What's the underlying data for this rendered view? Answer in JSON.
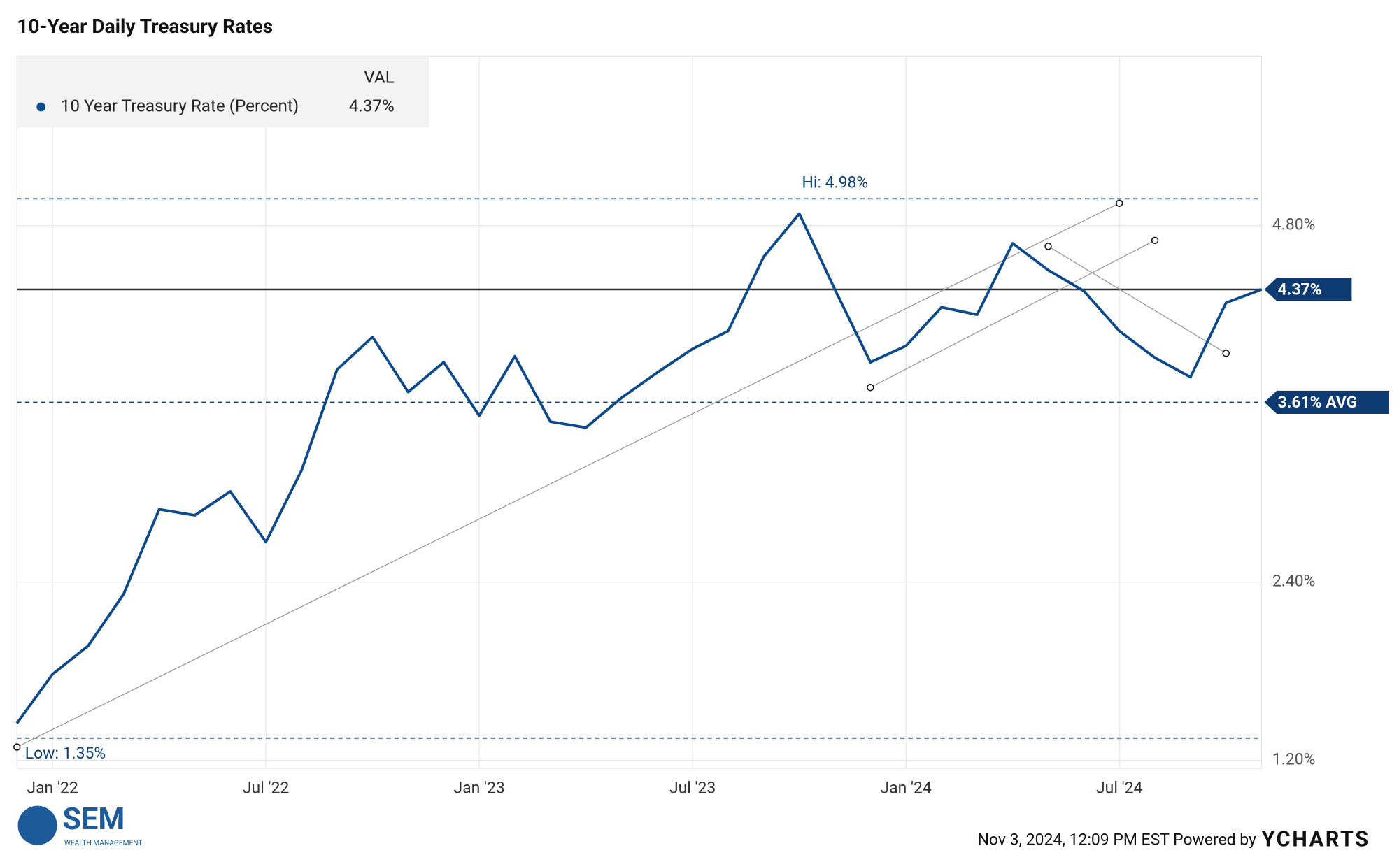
{
  "chart_data": {
    "type": "line",
    "title": "10-Year Daily Treasury Rates",
    "x": [
      "2021-12",
      "2022-01",
      "2022-02",
      "2022-03",
      "2022-04",
      "2022-05",
      "2022-06",
      "2022-07",
      "2022-08",
      "2022-09",
      "2022-10",
      "2022-11",
      "2022-12",
      "2023-01",
      "2023-02",
      "2023-03",
      "2023-04",
      "2023-05",
      "2023-06",
      "2023-07",
      "2023-08",
      "2023-09",
      "2023-10",
      "2023-11",
      "2023-12",
      "2024-01",
      "2024-02",
      "2024-03",
      "2024-04",
      "2024-05",
      "2024-06",
      "2024-07",
      "2024-08",
      "2024-09",
      "2024-10",
      "2024-11"
    ],
    "series": [
      {
        "name": "10 Year Treasury Rate (Percent)",
        "color": "#0d4a8c",
        "values": [
          1.45,
          1.78,
          1.97,
          2.32,
          2.89,
          2.85,
          3.01,
          2.67,
          3.15,
          3.83,
          4.05,
          3.68,
          3.88,
          3.52,
          3.92,
          3.48,
          3.44,
          3.64,
          3.81,
          3.97,
          4.09,
          4.59,
          4.88,
          4.37,
          3.88,
          3.99,
          4.25,
          4.2,
          4.68,
          4.5,
          4.36,
          4.09,
          3.91,
          3.78,
          4.28,
          4.37
        ]
      }
    ],
    "legend_header": "VAL",
    "legend_value": "4.37%",
    "xlim": [
      "2021-12",
      "2024-11"
    ],
    "xticks": [
      {
        "value": "2022-01",
        "label": "Jan '22"
      },
      {
        "value": "2022-07",
        "label": "Jul '22"
      },
      {
        "value": "2023-01",
        "label": "Jan '23"
      },
      {
        "value": "2023-07",
        "label": "Jul '23"
      },
      {
        "value": "2024-01",
        "label": "Jan '24"
      },
      {
        "value": "2024-07",
        "label": "Jul '24"
      }
    ],
    "ylim": [
      1.146,
      5.94
    ],
    "yticks": [
      {
        "value": 1.2,
        "label": "1.20%"
      },
      {
        "value": 2.4,
        "label": "2.40%"
      },
      {
        "value": 4.8,
        "label": "4.80%"
      }
    ],
    "grid": true,
    "reference_lines": [
      {
        "value": 4.98,
        "label": "Hi: 4.98%",
        "style": "dashed"
      },
      {
        "value": 1.35,
        "label": "Low: 1.35%",
        "style": "dashed"
      },
      {
        "value": 3.61,
        "label": "3.61% AVG",
        "style": "dashed"
      },
      {
        "value": 4.37,
        "label": "4.37%",
        "style": "solid"
      }
    ],
    "trend_lines": [
      {
        "x": [
          "2021-12",
          "2024-07"
        ],
        "y": [
          1.29,
          4.95
        ]
      },
      {
        "x": [
          "2023-12",
          "2024-08"
        ],
        "y": [
          3.71,
          4.7
        ]
      },
      {
        "x": [
          "2024-05",
          "2024-10"
        ],
        "y": [
          4.66,
          3.94
        ]
      }
    ],
    "footer": "Nov 3, 2024, 12:09 PM EST Powered by",
    "brand": "YCHARTS",
    "logo_name": "SEM",
    "logo_sub": "WEALTH MANAGEMENT"
  }
}
